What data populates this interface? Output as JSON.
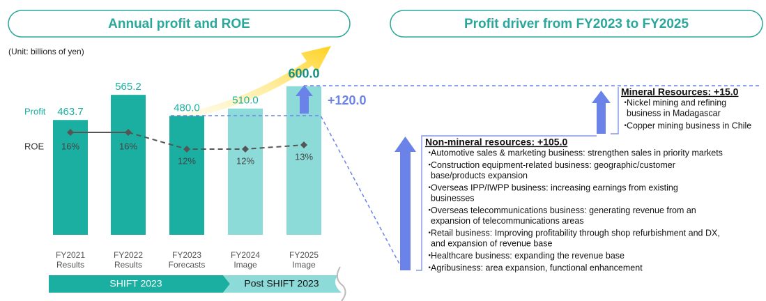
{
  "chart_data": {
    "type": "bar",
    "title": "Annual profit and ROE",
    "unit_note": "(Unit: billions of yen)",
    "categories": [
      "FY2021",
      "FY2022",
      "FY2023",
      "FY2024",
      "FY2025"
    ],
    "category_sublabels": [
      "Results",
      "Results",
      "Forecasts",
      "Image",
      "Image"
    ],
    "ylim": [
      0,
      650
    ],
    "y2lim": [
      -8.5,
      30
    ],
    "series": [
      {
        "name": "Profit",
        "color": "#1aafa0",
        "colors": [
          "#1aafa0",
          "#1aafa0",
          "#1aafa0",
          "#8ddbd9",
          "#8ddbd9"
        ],
        "values": [
          463.7,
          565.2,
          480.0,
          510.0,
          600.0
        ],
        "value_labels": [
          "463.7",
          "565.2",
          "480.0",
          "510.0",
          "600.0"
        ]
      },
      {
        "name": "ROE",
        "color": "#555555",
        "axis": "y2",
        "values": [
          16,
          16,
          12,
          12,
          13
        ],
        "value_labels": [
          "16%",
          "16%",
          "12%",
          "12%",
          "13%"
        ]
      }
    ],
    "annotation": "+120.0",
    "phases": [
      "SHIFT 2023",
      "Post SHIFT 2023"
    ]
  },
  "driver_panel": {
    "title": "Profit driver from FY2023 to FY2025",
    "groups": [
      {
        "heading": "Non-mineral resources: +105.0",
        "items": [
          [
            "Automotive sales & marketing business: strengthen sales in priority markets"
          ],
          [
            "Construction equipment-related business: geographic/customer",
            "base/products expansion"
          ],
          [
            "Overseas IPP/IWPP business: increasing earnings from existing",
            "businesses"
          ],
          [
            "Overseas telecommunications business: generating revenue from an",
            "expansion of telecommunications areas"
          ],
          [
            "Retail business: Improving profitability through shop refurbishment and DX,",
            "and expansion of revenue base"
          ],
          [
            "Healthcare business: expanding the revenue base"
          ],
          [
            "Agribusiness: area expansion, functional enhancement"
          ]
        ]
      },
      {
        "heading": "Mineral Resources: +15.0",
        "items": [
          [
            "Nickel mining and refining",
            "business in Madagascar"
          ],
          [
            "Copper mining business in Chile"
          ]
        ]
      }
    ]
  }
}
